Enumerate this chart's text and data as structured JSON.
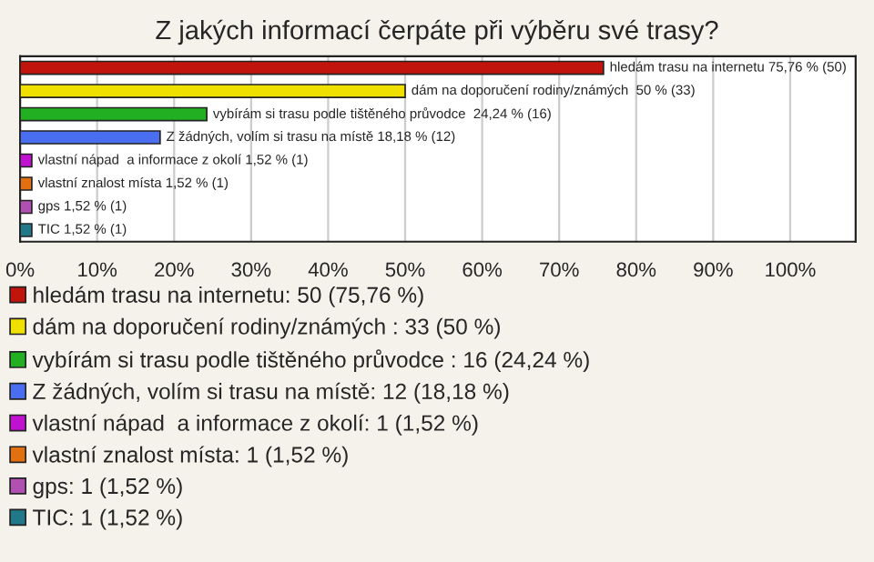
{
  "chart_data": {
    "type": "bar",
    "orientation": "horizontal",
    "title": "Z jakých informací čerpáte při výběru své trasy?",
    "categories": [
      null,
      null,
      null,
      null,
      null,
      null,
      null,
      null
    ],
    "series": [
      {
        "name": "hledám trasu na internetu: 50 (75,76 %)",
        "color": "#c0140c",
        "values": [
          75.76,
          null,
          null,
          null,
          null,
          null,
          null,
          null
        ],
        "value_labels": [
          "hledám trasu na internetu 75,76 % (50)",
          null,
          null,
          null,
          null,
          null,
          null,
          null
        ]
      },
      {
        "name": "dám na doporučení rodiny/známých : 33 (50 %)",
        "color": "#f0e000",
        "values": [
          null,
          50,
          null,
          null,
          null,
          null,
          null,
          null
        ],
        "value_labels": [
          null,
          "dám na doporučení rodiny/známých  50 % (33)",
          null,
          null,
          null,
          null,
          null,
          null
        ]
      },
      {
        "name": "vybírám si trasu podle tištěného průvodce : 16 (24,24 %)",
        "color": "#22b022",
        "values": [
          null,
          null,
          24.24,
          null,
          null,
          null,
          null,
          null
        ],
        "value_labels": [
          null,
          null,
          "vybírám si trasu podle tištěného průvodce  24,24 % (16)",
          null,
          null,
          null,
          null,
          null
        ]
      },
      {
        "name": "Z žádných, volím si trasu na místě: 12 (18,18 %)",
        "color": "#4a6ef0",
        "values": [
          null,
          null,
          null,
          18.18,
          null,
          null,
          null,
          null
        ],
        "value_labels": [
          null,
          null,
          null,
          "Z žádných, volím si trasu na místě 18,18 % (12)",
          null,
          null,
          null,
          null
        ]
      },
      {
        "name": "vlastní nápad  a informace z okolí: 1 (1,52 %)",
        "color": "#c010d0",
        "values": [
          null,
          null,
          null,
          null,
          1.52,
          null,
          null,
          null
        ],
        "value_labels": [
          null,
          null,
          null,
          null,
          "vlastní nápad  a informace z okolí 1,52 % (1)",
          null,
          null,
          null
        ]
      },
      {
        "name": "vlastní znalost místa: 1 (1,52 %)",
        "color": "#e07010",
        "values": [
          null,
          null,
          null,
          null,
          null,
          1.52,
          null,
          null
        ],
        "value_labels": [
          null,
          null,
          null,
          null,
          null,
          "vlastní znalost místa 1,52 % (1)",
          null,
          null
        ]
      },
      {
        "name": "gps: 1 (1,52 %)",
        "color": "#b050b0",
        "values": [
          null,
          null,
          null,
          null,
          null,
          null,
          1.52,
          null
        ],
        "value_labels": [
          null,
          null,
          null,
          null,
          null,
          null,
          "gps 1,52 % (1)",
          null
        ]
      },
      {
        "name": "TIC: 1 (1,52 %)",
        "color": "#207888",
        "values": [
          null,
          null,
          null,
          null,
          null,
          null,
          null,
          1.52
        ],
        "value_labels": [
          null,
          null,
          null,
          null,
          null,
          null,
          null,
          "TIC 1,52 % (1)"
        ]
      }
    ],
    "xlim": [
      0,
      108.5
    ],
    "xticks": [
      {
        "value": 0,
        "label": "0%"
      },
      {
        "value": 10,
        "label": "10%"
      },
      {
        "value": 20,
        "label": "20%"
      },
      {
        "value": 30,
        "label": "30%"
      },
      {
        "value": 40,
        "label": "40%"
      },
      {
        "value": 50,
        "label": "50%"
      },
      {
        "value": 60,
        "label": "60%"
      },
      {
        "value": 70,
        "label": "70%"
      },
      {
        "value": 80,
        "label": "80%"
      },
      {
        "value": 90,
        "label": "90%"
      },
      {
        "value": 100,
        "label": "100%"
      }
    ],
    "grid": "x",
    "legend": "bottom"
  }
}
